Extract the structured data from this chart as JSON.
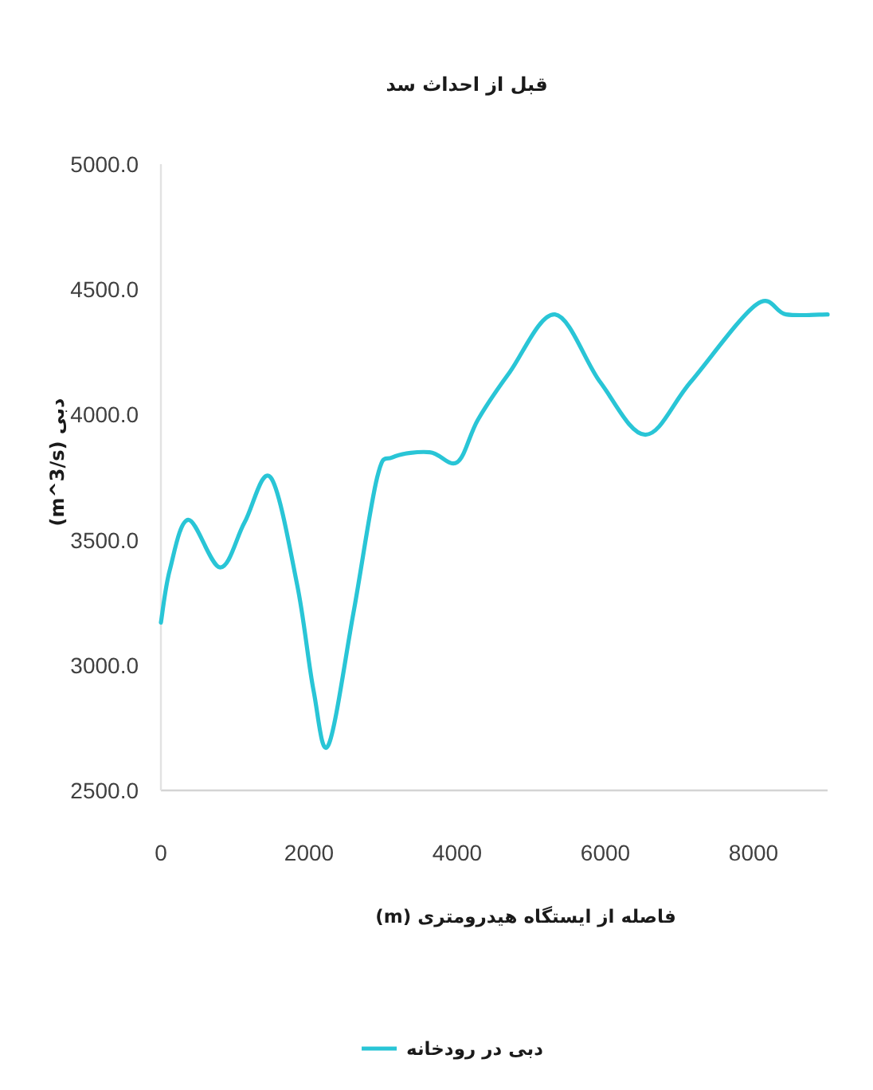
{
  "chart_data": {
    "type": "line",
    "title": "قبل از احداث سد",
    "xlabel": "فاصله از ایستگاه هیدرومتری (m)",
    "ylabel": "دبی (m^3/s)",
    "x": [
      0,
      120,
      370,
      800,
      1130,
      1480,
      1840,
      2060,
      2260,
      2600,
      2920,
      3130,
      3630,
      4000,
      4280,
      4710,
      5320,
      5930,
      6540,
      7150,
      8040,
      8440,
      9000
    ],
    "series": [
      {
        "name": "دبی در رودخانه",
        "color": "#29c5d6",
        "values": [
          3170,
          3380,
          3580,
          3390,
          3570,
          3750,
          3320,
          2900,
          2680,
          3210,
          3750,
          3830,
          3850,
          3810,
          3980,
          4170,
          4400,
          4130,
          3920,
          4130,
          4440,
          4400,
          4400
        ]
      }
    ],
    "xlim": [
      0,
      9000
    ],
    "ylim": [
      2500,
      5000
    ],
    "xticks": [
      0,
      2000,
      4000,
      6000,
      8000
    ],
    "yticks": [
      {
        "value": 2500,
        "label": "2500.0"
      },
      {
        "value": 3000,
        "label": "3000.0"
      },
      {
        "value": 3500,
        "label": "3500.0"
      },
      {
        "value": 4000,
        "label": "4000.0"
      },
      {
        "value": 4500,
        "label": "4500.0"
      },
      {
        "value": 5000,
        "label": "5000.0"
      }
    ],
    "legend": "bottom",
    "line_style": "solid"
  }
}
